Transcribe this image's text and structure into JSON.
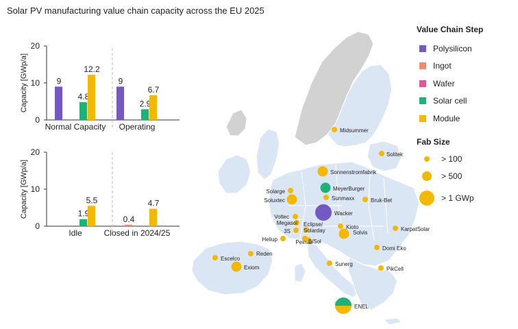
{
  "title": "Solar PV manufacturing value chain capacity across the EU 2025",
  "colors": {
    "Polysilicon": "#7458c4",
    "Ingot": "#f28b6c",
    "Wafer": "#e8549a",
    "Solar cell": "#1db377",
    "Module": "#f5b800",
    "land": "#dbe6f5",
    "nonEU": "#d2d2d2",
    "border": "#ffffff"
  },
  "legend": {
    "step_title": "Value Chain Step",
    "steps": [
      "Polysilicon",
      "Ingot",
      "Wafer",
      "Solar cell",
      "Module"
    ],
    "fab_title": "Fab Size",
    "fab_sizes": [
      "> 100",
      "> 500",
      "> 1 GWp"
    ]
  },
  "chart_data": [
    {
      "type": "bar",
      "ylabel": "Capacity [GWp/a]",
      "ylim": [
        0,
        20
      ],
      "yticks": [
        0,
        10,
        20
      ],
      "categories": [
        "Normal Capacity",
        "Operating"
      ],
      "series": [
        {
          "name": "Polysilicon",
          "values": [
            9,
            9
          ]
        },
        {
          "name": "Ingot",
          "values": [
            0,
            0
          ]
        },
        {
          "name": "Wafer",
          "values": [
            0,
            0
          ]
        },
        {
          "name": "Solar cell",
          "values": [
            4.8,
            2.9
          ]
        },
        {
          "name": "Module",
          "values": [
            12.2,
            6.7
          ]
        }
      ]
    },
    {
      "type": "bar",
      "ylabel": "Capacity [GWp/a]",
      "ylim": [
        0,
        20
      ],
      "yticks": [
        0,
        10,
        20
      ],
      "categories": [
        "Idle",
        "Closed in 2024/25"
      ],
      "series": [
        {
          "name": "Polysilicon",
          "values": [
            0,
            0
          ]
        },
        {
          "name": "Ingot",
          "values": [
            0,
            0.4
          ]
        },
        {
          "name": "Wafer",
          "values": [
            0,
            0
          ]
        },
        {
          "name": "Solar cell",
          "values": [
            1.9,
            0
          ]
        },
        {
          "name": "Module",
          "values": [
            5.5,
            4.7
          ]
        }
      ]
    }
  ],
  "map": {
    "sites": [
      {
        "name": "Midsummer",
        "step": "Module",
        "size": "> 100"
      },
      {
        "name": "Solitek",
        "step": "Module",
        "size": "> 100"
      },
      {
        "name": "Sonnenstromfabrik",
        "step": "Module",
        "size": "> 500"
      },
      {
        "name": "Solarge",
        "step": "Module",
        "size": "> 100"
      },
      {
        "name": "MeyerBurger",
        "step": "Solar cell",
        "size": "> 500"
      },
      {
        "name": "Soluxtec",
        "step": "Module",
        "size": "> 500"
      },
      {
        "name": "Sunmaxx",
        "step": "Module",
        "size": "> 100"
      },
      {
        "name": "Bruk-Bet",
        "step": "Module",
        "size": "> 100"
      },
      {
        "name": "Wacker",
        "step": "Polysilicon",
        "size": "> 1 GWp"
      },
      {
        "name": "Voltec",
        "step": "Module",
        "size": "> 100"
      },
      {
        "name": "Megasol",
        "step": "Module",
        "size": "> 100"
      },
      {
        "name": "3S",
        "step": "Module",
        "size": "> 100"
      },
      {
        "name": "Eclipse/ Solarday",
        "step": "Module",
        "size": "> 100"
      },
      {
        "name": "Kioto",
        "step": "Module",
        "size": "> 100"
      },
      {
        "name": "Solvis",
        "step": "Module",
        "size": "> 500"
      },
      {
        "name": "Heliup",
        "step": "Module",
        "size": "> 100"
      },
      {
        "name": "Peimar",
        "step": "Module",
        "size": "> 100"
      },
      {
        "name": "BiSol",
        "step": "Module",
        "size": "> 100"
      },
      {
        "name": "KarpatSolar",
        "step": "Module",
        "size": "> 100"
      },
      {
        "name": "Domi Eko",
        "step": "Module",
        "size": "> 100"
      },
      {
        "name": "Escelco",
        "step": "Module",
        "size": "> 100"
      },
      {
        "name": "Reden",
        "step": "Module",
        "size": "> 100"
      },
      {
        "name": "Exiom",
        "step": "Module",
        "size": "> 500"
      },
      {
        "name": "Sunerg",
        "step": "Module",
        "size": "> 100"
      },
      {
        "name": "PikCell",
        "step": "Module",
        "size": "> 100"
      },
      {
        "name": "ENEL",
        "step": "Solar cell + Module",
        "size": "> 1 GWp"
      }
    ]
  }
}
